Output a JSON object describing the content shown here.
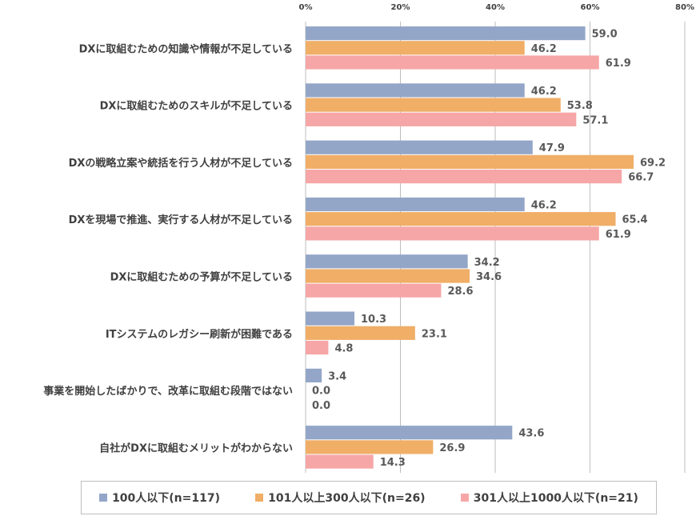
{
  "chart_data": {
    "type": "bar",
    "orientation": "horizontal",
    "xlim": [
      0,
      80
    ],
    "ticks": [
      "0%",
      "20%",
      "40%",
      "60%",
      "80%"
    ],
    "tick_values": [
      0,
      20,
      40,
      60,
      80
    ],
    "grid": true,
    "legend_position": "bottom",
    "categories": [
      "DXに取組むための知識や情報が不足している",
      "DXに取組むためのスキルが不足している",
      "DXの戦略立案や統括を行う人材が不足している",
      "DXを現場で推進、実行する人材が不足している",
      "DXに取組むための予算が不足している",
      "ITシステムのレガシー刷新が困難である",
      "事業を開始したばかりで、改革に取組む段階ではない",
      "自社がDXに取組むメリットがわからない"
    ],
    "series": [
      {
        "name": "100人以下(n=117)",
        "color": "#93a6c8",
        "values": [
          59.0,
          46.2,
          47.9,
          46.2,
          34.2,
          10.3,
          3.4,
          43.6
        ],
        "labels": [
          "59.0",
          "46.2",
          "47.9",
          "46.2",
          "34.2",
          "10.3",
          "3.4",
          "43.6"
        ]
      },
      {
        "name": "101人以上300人以下(n=26)",
        "color": "#f0ae67",
        "values": [
          46.2,
          53.8,
          69.2,
          65.4,
          34.6,
          23.1,
          0.0,
          26.9
        ],
        "labels": [
          "46.2",
          "53.8",
          "69.2",
          "65.4",
          "34.6",
          "23.1",
          "0.0",
          "26.9"
        ]
      },
      {
        "name": "301人以上1000人以下(n=21)",
        "color": "#f6a6a6",
        "values": [
          61.9,
          57.1,
          66.7,
          61.9,
          28.6,
          4.8,
          0.0,
          14.3
        ],
        "labels": [
          "61.9",
          "57.1",
          "66.7",
          "61.9",
          "28.6",
          "4.8",
          "0.0",
          "14.3"
        ]
      }
    ]
  }
}
